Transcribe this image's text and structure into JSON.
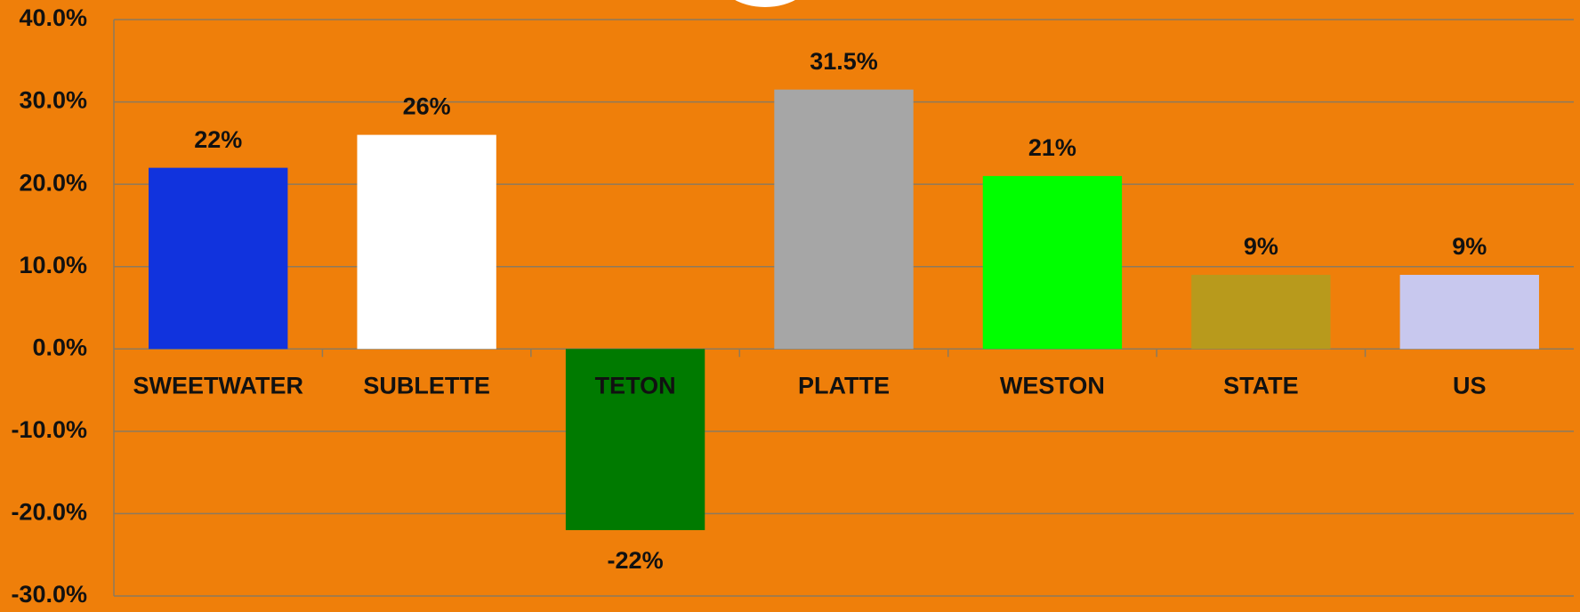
{
  "chart_data": {
    "type": "bar",
    "categories": [
      "SWEETWATER",
      "SUBLETTE",
      "TETON",
      "PLATTE",
      "WESTON",
      "STATE",
      "US"
    ],
    "values": [
      22,
      26,
      -22,
      31.5,
      21,
      9,
      9
    ],
    "value_labels": [
      "22%",
      "26%",
      "-22%",
      "31.5%",
      "21%",
      "9%",
      "9%"
    ],
    "colors": [
      "#1133dd",
      "#ffffff",
      "#007a00",
      "#a6a6a6",
      "#00ff00",
      "#b89a1c",
      "#c8c8ee"
    ],
    "ylim": [
      -30,
      40
    ],
    "yticks": [
      {
        "value": -30,
        "label": "-30.0%"
      },
      {
        "value": -20,
        "label": "-20.0%"
      },
      {
        "value": -10,
        "label": "-10.0%"
      },
      {
        "value": 0,
        "label": "0.0%"
      },
      {
        "value": 10,
        "label": "10.0%"
      },
      {
        "value": 20,
        "label": "20.0%"
      },
      {
        "value": 30,
        "label": "30.0%"
      },
      {
        "value": 40,
        "label": "40.0%"
      }
    ],
    "grid": true
  }
}
